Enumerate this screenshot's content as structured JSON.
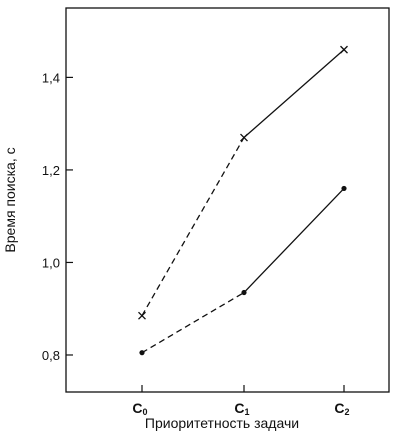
{
  "chart_data": {
    "type": "line",
    "xlabel": "Приоритетность задачи",
    "ylabel": "Время поиска, с",
    "categories": [
      {
        "main": "C",
        "sub": "0"
      },
      {
        "main": "C",
        "sub": "1"
      },
      {
        "main": "C",
        "sub": "2"
      }
    ],
    "yticks": [
      "0,8",
      "1,0",
      "1,2",
      "1,4"
    ],
    "ytick_values": [
      0.8,
      1.0,
      1.2,
      1.4
    ],
    "ylim": [
      0.72,
      1.55
    ],
    "grid": false,
    "series": [
      {
        "marker": "cross",
        "values": [
          0.885,
          1.27,
          1.46
        ],
        "line_styles": [
          "dashed",
          "solid"
        ]
      },
      {
        "marker": "dot",
        "values": [
          0.805,
          0.935,
          1.16
        ],
        "line_styles": [
          "dashed",
          "solid"
        ]
      }
    ],
    "colors": {
      "line": "#111111",
      "axes": "#111111",
      "background": "#ffffff"
    }
  }
}
